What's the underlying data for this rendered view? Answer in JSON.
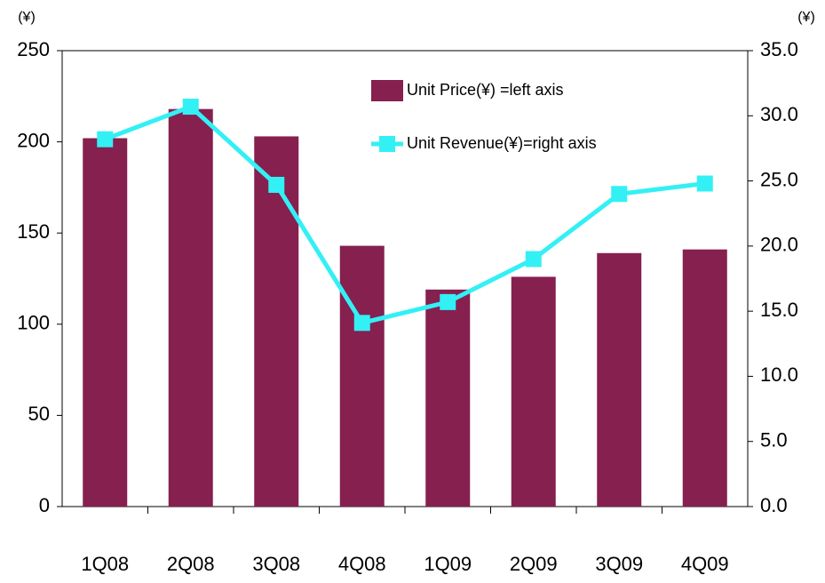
{
  "chart_data": {
    "type": "bar-line",
    "y_unit": "(¥)",
    "y2_unit": "(¥)",
    "categories": [
      "1Q08",
      "2Q08",
      "3Q08",
      "4Q08",
      "1Q09",
      "2Q09",
      "3Q09",
      "4Q09"
    ],
    "series": [
      {
        "name": "Unit Price(¥) =left axis",
        "type": "bar",
        "color": "#85204f",
        "values": [
          202,
          218,
          203,
          143,
          119,
          126,
          139,
          141
        ]
      },
      {
        "name": "Unit Revenue(¥)=right axis",
        "type": "line",
        "axis": "y2",
        "color": "#33f0f5",
        "values": [
          28.2,
          30.7,
          24.7,
          14.1,
          15.7,
          19.0,
          24.0,
          24.8
        ]
      }
    ],
    "ylim": [
      0,
      250
    ],
    "yticks": [
      0,
      50,
      100,
      150,
      200,
      250
    ],
    "y2lim": [
      0,
      35
    ],
    "y2ticks": [
      {
        "value": 0,
        "label": "0.0"
      },
      {
        "value": 5,
        "label": "5.0"
      },
      {
        "value": 10,
        "label": "10.0"
      },
      {
        "value": 15,
        "label": "15.0"
      },
      {
        "value": 20,
        "label": "20.0"
      },
      {
        "value": 25,
        "label": "25.0"
      },
      {
        "value": 30,
        "label": "30.0"
      },
      {
        "value": 35,
        "label": "35.0"
      }
    ],
    "grid": false,
    "legend": "top"
  }
}
